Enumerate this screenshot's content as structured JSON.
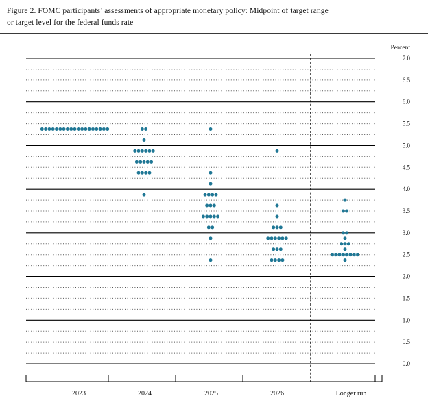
{
  "header": {
    "title_line1": "Figure 2.  FOMC participants’ assessments of appropriate monetary policy: Midpoint of target range",
    "title_line2": "or target level for the federal funds rate"
  },
  "chart_data": {
    "type": "scatter",
    "variant": "fomc_dot_plot",
    "title": "FOMC participants' assessments of appropriate monetary policy: Midpoint of target range or target level for the federal funds rate",
    "ylabel": "Percent",
    "xlabel": "",
    "ylim": [
      0.0,
      7.0
    ],
    "y_tick_labels": [
      "7.0",
      "6.5",
      "6.0",
      "5.5",
      "5.0",
      "4.5",
      "4.0",
      "3.5",
      "3.0",
      "2.5",
      "2.0",
      "1.5",
      "1.0",
      "0.5",
      "0.0"
    ],
    "grid": {
      "dotted_interval": 0.25,
      "solid_interval": 1.0,
      "grid_on": true
    },
    "categories": [
      "2023",
      "2024",
      "2025",
      "2026",
      "Longer run"
    ],
    "separator_after_category": "2026",
    "dot_color": "#1f7795",
    "axis_color": "#000000",
    "legend_position": "none",
    "series": [
      {
        "category": "2023",
        "dots": [
          {
            "rate": 5.375,
            "count": 19
          }
        ]
      },
      {
        "category": "2024",
        "dots": [
          {
            "rate": 5.375,
            "count": 2
          },
          {
            "rate": 5.125,
            "count": 1
          },
          {
            "rate": 4.875,
            "count": 6
          },
          {
            "rate": 4.625,
            "count": 5
          },
          {
            "rate": 4.375,
            "count": 4
          },
          {
            "rate": 3.875,
            "count": 1
          }
        ]
      },
      {
        "category": "2025",
        "dots": [
          {
            "rate": 5.375,
            "count": 1
          },
          {
            "rate": 4.375,
            "count": 1
          },
          {
            "rate": 4.125,
            "count": 1
          },
          {
            "rate": 3.875,
            "count": 4
          },
          {
            "rate": 3.625,
            "count": 3
          },
          {
            "rate": 3.375,
            "count": 5
          },
          {
            "rate": 3.125,
            "count": 2
          },
          {
            "rate": 2.875,
            "count": 1
          },
          {
            "rate": 2.375,
            "count": 1
          }
        ]
      },
      {
        "category": "2026",
        "dots": [
          {
            "rate": 4.875,
            "count": 1
          },
          {
            "rate": 3.625,
            "count": 1
          },
          {
            "rate": 3.375,
            "count": 1
          },
          {
            "rate": 3.125,
            "count": 3
          },
          {
            "rate": 2.875,
            "count": 6
          },
          {
            "rate": 2.625,
            "count": 3
          },
          {
            "rate": 2.375,
            "count": 4
          }
        ]
      },
      {
        "category": "Longer run",
        "dots": [
          {
            "rate": 3.75,
            "count": 1
          },
          {
            "rate": 3.5,
            "count": 2
          },
          {
            "rate": 3.0,
            "count": 2
          },
          {
            "rate": 2.875,
            "count": 1
          },
          {
            "rate": 2.75,
            "count": 3
          },
          {
            "rate": 2.625,
            "count": 1
          },
          {
            "rate": 2.5,
            "count": 8
          },
          {
            "rate": 2.375,
            "count": 1
          }
        ]
      }
    ]
  }
}
